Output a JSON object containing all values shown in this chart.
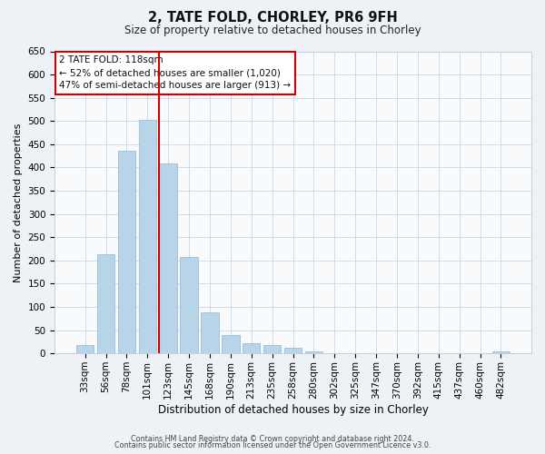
{
  "title": "2, TATE FOLD, CHORLEY, PR6 9FH",
  "subtitle": "Size of property relative to detached houses in Chorley",
  "xlabel": "Distribution of detached houses by size in Chorley",
  "ylabel": "Number of detached properties",
  "footer_line1": "Contains HM Land Registry data © Crown copyright and database right 2024.",
  "footer_line2": "Contains public sector information licensed under the Open Government Licence v3.0.",
  "bar_labels": [
    "33sqm",
    "56sqm",
    "78sqm",
    "101sqm",
    "123sqm",
    "145sqm",
    "168sqm",
    "190sqm",
    "213sqm",
    "235sqm",
    "258sqm",
    "280sqm",
    "302sqm",
    "325sqm",
    "347sqm",
    "370sqm",
    "392sqm",
    "415sqm",
    "437sqm",
    "460sqm",
    "482sqm"
  ],
  "bar_values": [
    18,
    213,
    437,
    503,
    408,
    207,
    88,
    40,
    22,
    18,
    12,
    5,
    0,
    0,
    0,
    0,
    0,
    0,
    0,
    0,
    4
  ],
  "bar_color": "#b8d4e8",
  "bar_edge_color": "#a0bcd8",
  "ylim": [
    0,
    650
  ],
  "yticks": [
    0,
    50,
    100,
    150,
    200,
    250,
    300,
    350,
    400,
    450,
    500,
    550,
    600,
    650
  ],
  "vline_color": "#cc0000",
  "vline_bar_index": 4,
  "annotation_title": "2 TATE FOLD: 118sqm",
  "annotation_line1": "← 52% of detached houses are smaller (1,020)",
  "annotation_line2": "47% of semi-detached houses are larger (913) →",
  "annotation_box_color": "#cc0000",
  "bg_color": "#eef2f7",
  "plot_bg_color": "#f8fafc",
  "grid_color": "#c8d8e8",
  "title_fontsize": 10.5,
  "subtitle_fontsize": 8.5,
  "xlabel_fontsize": 8.5,
  "ylabel_fontsize": 8.0,
  "tick_fontsize": 7.5,
  "footer_fontsize": 5.8
}
